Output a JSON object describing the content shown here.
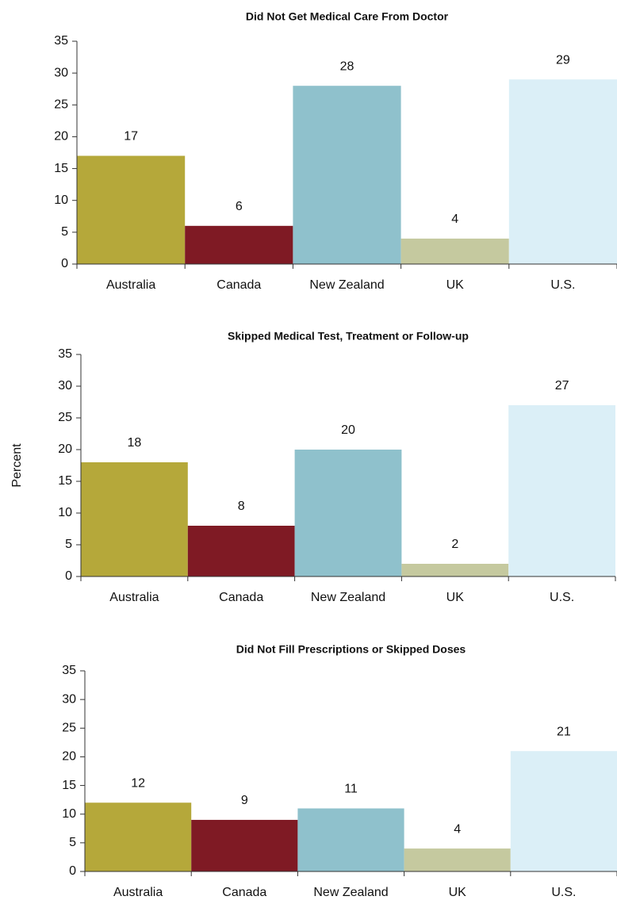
{
  "chart_data": [
    {
      "type": "bar",
      "title": "Did Not Get Medical Care From Doctor",
      "categories": [
        "Australia",
        "Canada",
        "New Zealand",
        "UK",
        "U.S."
      ],
      "values": [
        17,
        6,
        28,
        4,
        29
      ],
      "colors": [
        "#b5a83a",
        "#7f1a24",
        "#8fc1cc",
        "#c5c99f",
        "#dbeff7"
      ],
      "ylim": [
        0,
        35
      ],
      "yticks": [
        0,
        5,
        10,
        15,
        20,
        25,
        30,
        35
      ]
    },
    {
      "type": "bar",
      "title": "Skipped Medical Test, Treatment or Follow-up",
      "ylabel": "Percent",
      "categories": [
        "Australia",
        "Canada",
        "New Zealand",
        "UK",
        "U.S."
      ],
      "values": [
        18,
        8,
        20,
        2,
        27
      ],
      "colors": [
        "#b5a83a",
        "#7f1a24",
        "#8fc1cc",
        "#c5c99f",
        "#dbeff7"
      ],
      "ylim": [
        0,
        35
      ],
      "yticks": [
        0,
        5,
        10,
        15,
        20,
        25,
        30,
        35
      ]
    },
    {
      "type": "bar",
      "title": "Did Not Fill Prescriptions or Skipped Doses",
      "categories": [
        "Australia",
        "Canada",
        "New Zealand",
        "UK",
        "U.S."
      ],
      "values": [
        12,
        9,
        11,
        4,
        21
      ],
      "colors": [
        "#b5a83a",
        "#7f1a24",
        "#8fc1cc",
        "#c5c99f",
        "#dbeff7"
      ],
      "ylim": [
        0,
        35
      ],
      "yticks": [
        0,
        5,
        10,
        15,
        20,
        25,
        30,
        35
      ]
    }
  ]
}
